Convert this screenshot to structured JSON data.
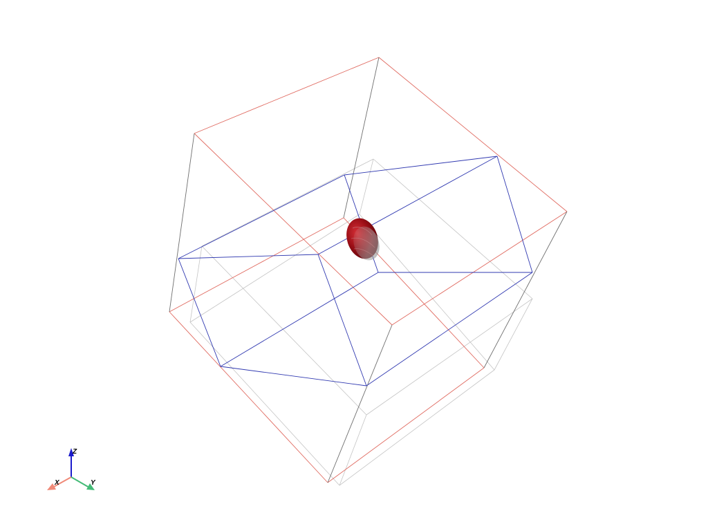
{
  "scene": {
    "background": "#ffffff",
    "colors": {
      "red_box": "#e06a60",
      "gray_box": "#b8b8b8",
      "dark_edge": "#6e6e6e",
      "blue_outline": "#2f38b0",
      "blob_dark": "#8e0a10",
      "blob_light": "#c02028",
      "blob_gray": "#9a9a9a"
    }
  },
  "axes_widget": {
    "x_label": "X",
    "y_label": "Y",
    "z_label": "Z",
    "x_color": "#f08a78",
    "y_color": "#44bb77",
    "z_color": "#1a1acc"
  }
}
